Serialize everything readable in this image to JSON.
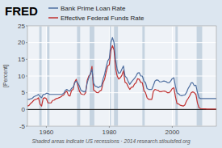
{
  "chart_data": {
    "type": "line",
    "title": "FRED",
    "ylabel": "[Percent]",
    "annotation": "Shaded areas indicate US recessions  ·  2014 research.stlouisfed.org",
    "legend": "top-left",
    "grid": true,
    "xlim": [
      1954,
      2014
    ],
    "ylim": [
      -5,
      25
    ],
    "xticks": [
      1960,
      1980,
      2000
    ],
    "yticks": [
      -5,
      0,
      5,
      10,
      15,
      20,
      25
    ],
    "recessions": [
      [
        1957.75,
        1958.5
      ],
      [
        1960.25,
        1961.0
      ],
      [
        1969.75,
        1970.75
      ],
      [
        1973.75,
        1975.25
      ],
      [
        1980.0,
        1980.5
      ],
      [
        1981.5,
        1982.75
      ],
      [
        1990.5,
        1991.25
      ],
      [
        2001.0,
        2001.75
      ],
      [
        2007.75,
        2009.5
      ]
    ],
    "x": [
      1954.0,
      1954.5,
      1955.0,
      1955.5,
      1956.0,
      1956.5,
      1957.0,
      1957.5,
      1958.0,
      1958.5,
      1959.0,
      1959.5,
      1960.0,
      1960.5,
      1961.0,
      1961.5,
      1962.0,
      1962.5,
      1963.0,
      1963.5,
      1964.0,
      1964.5,
      1965.0,
      1965.5,
      1966.0,
      1966.5,
      1967.0,
      1967.5,
      1968.0,
      1968.5,
      1969.0,
      1969.5,
      1970.0,
      1970.5,
      1971.0,
      1971.5,
      1972.0,
      1972.5,
      1973.0,
      1973.5,
      1974.0,
      1974.5,
      1975.0,
      1975.5,
      1976.0,
      1976.5,
      1977.0,
      1977.5,
      1978.0,
      1978.5,
      1979.0,
      1979.5,
      1980.0,
      1980.5,
      1981.0,
      1981.5,
      1982.0,
      1982.5,
      1983.0,
      1983.5,
      1984.0,
      1984.5,
      1985.0,
      1985.5,
      1986.0,
      1986.5,
      1987.0,
      1987.5,
      1988.0,
      1988.5,
      1989.0,
      1989.5,
      1990.0,
      1990.5,
      1991.0,
      1991.5,
      1992.0,
      1992.5,
      1993.0,
      1993.5,
      1994.0,
      1994.5,
      1995.0,
      1995.5,
      1996.0,
      1996.5,
      1997.0,
      1997.5,
      1998.0,
      1998.5,
      1999.0,
      1999.5,
      2000.0,
      2000.5,
      2001.0,
      2001.5,
      2002.0,
      2002.5,
      2003.0,
      2003.5,
      2004.0,
      2004.5,
      2005.0,
      2005.5,
      2006.0,
      2006.5,
      2007.0,
      2007.5,
      2008.0,
      2008.5,
      2009.0,
      2009.5,
      2010.0,
      2010.5,
      2011.0,
      2011.5,
      2012.0,
      2012.5,
      2013.0,
      2013.5,
      2014.0
    ],
    "series": [
      {
        "name": "Bank Prime Loan Rate",
        "color": "#4f6fa0",
        "values": [
          3.05,
          3.0,
          3.16,
          3.3,
          3.77,
          4.0,
          4.2,
          4.5,
          3.83,
          3.5,
          4.48,
          4.5,
          4.82,
          4.82,
          4.5,
          4.5,
          4.5,
          4.5,
          4.5,
          4.5,
          4.5,
          4.5,
          4.54,
          4.8,
          5.63,
          6.0,
          5.61,
          5.5,
          6.31,
          6.6,
          7.96,
          8.5,
          7.91,
          7.0,
          5.72,
          5.5,
          5.25,
          5.5,
          8.02,
          9.5,
          10.81,
          12.0,
          7.86,
          7.0,
          6.84,
          6.5,
          6.83,
          7.0,
          9.06,
          10.5,
          12.67,
          14.5,
          15.27,
          20.0,
          21.5,
          20.0,
          14.86,
          12.0,
          10.79,
          11.0,
          12.04,
          13.0,
          9.93,
          9.5,
          8.33,
          7.5,
          8.2,
          8.75,
          9.32,
          10.0,
          10.87,
          11.0,
          10.01,
          10.0,
          8.46,
          8.0,
          6.25,
          6.0,
          6.0,
          6.0,
          7.15,
          8.5,
          8.83,
          8.75,
          8.27,
          8.25,
          8.44,
          8.5,
          8.35,
          8.0,
          7.99,
          8.5,
          9.23,
          9.5,
          6.92,
          5.0,
          4.68,
          4.25,
          4.12,
          4.25,
          4.34,
          5.0,
          6.19,
          7.0,
          7.96,
          7.96,
          7.1,
          7.25,
          5.09,
          3.5,
          3.25,
          3.25,
          3.25,
          3.25,
          3.25,
          3.25,
          3.25,
          3.25,
          3.25,
          3.25,
          3.25
        ]
      },
      {
        "name": "Effective Federal Funds Rate",
        "color": "#c03030",
        "values": [
          1.0,
          1.2,
          1.79,
          2.2,
          2.73,
          3.0,
          3.11,
          3.5,
          1.57,
          1.0,
          3.31,
          3.5,
          3.22,
          2.0,
          1.96,
          2.0,
          2.68,
          2.8,
          3.18,
          3.3,
          3.5,
          3.7,
          4.07,
          4.3,
          5.11,
          5.5,
          4.22,
          4.0,
          5.66,
          6.0,
          8.2,
          9.0,
          7.18,
          5.5,
          4.67,
          4.5,
          4.43,
          5.0,
          8.73,
          10.0,
          10.5,
          12.9,
          5.82,
          5.5,
          5.05,
          5.0,
          5.54,
          5.8,
          7.93,
          9.0,
          11.19,
          13.0,
          13.36,
          17.6,
          19.1,
          17.8,
          12.26,
          10.0,
          9.09,
          9.5,
          10.23,
          11.6,
          8.1,
          7.8,
          6.81,
          6.0,
          6.66,
          6.7,
          7.57,
          8.0,
          9.21,
          9.0,
          8.1,
          8.0,
          5.69,
          5.0,
          3.52,
          3.0,
          3.02,
          3.0,
          5.45,
          6.0,
          5.83,
          5.75,
          5.3,
          5.3,
          5.46,
          5.5,
          5.35,
          5.0,
          5.0,
          5.5,
          6.24,
          6.5,
          3.88,
          1.75,
          1.67,
          1.25,
          1.13,
          1.0,
          1.35,
          2.5,
          3.22,
          4.0,
          4.97,
          5.25,
          5.02,
          4.5,
          1.93,
          0.5,
          0.24,
          0.2,
          0.18,
          0.15,
          0.1,
          0.1,
          0.14,
          0.12,
          0.11,
          0.1,
          0.09
        ]
      }
    ]
  }
}
